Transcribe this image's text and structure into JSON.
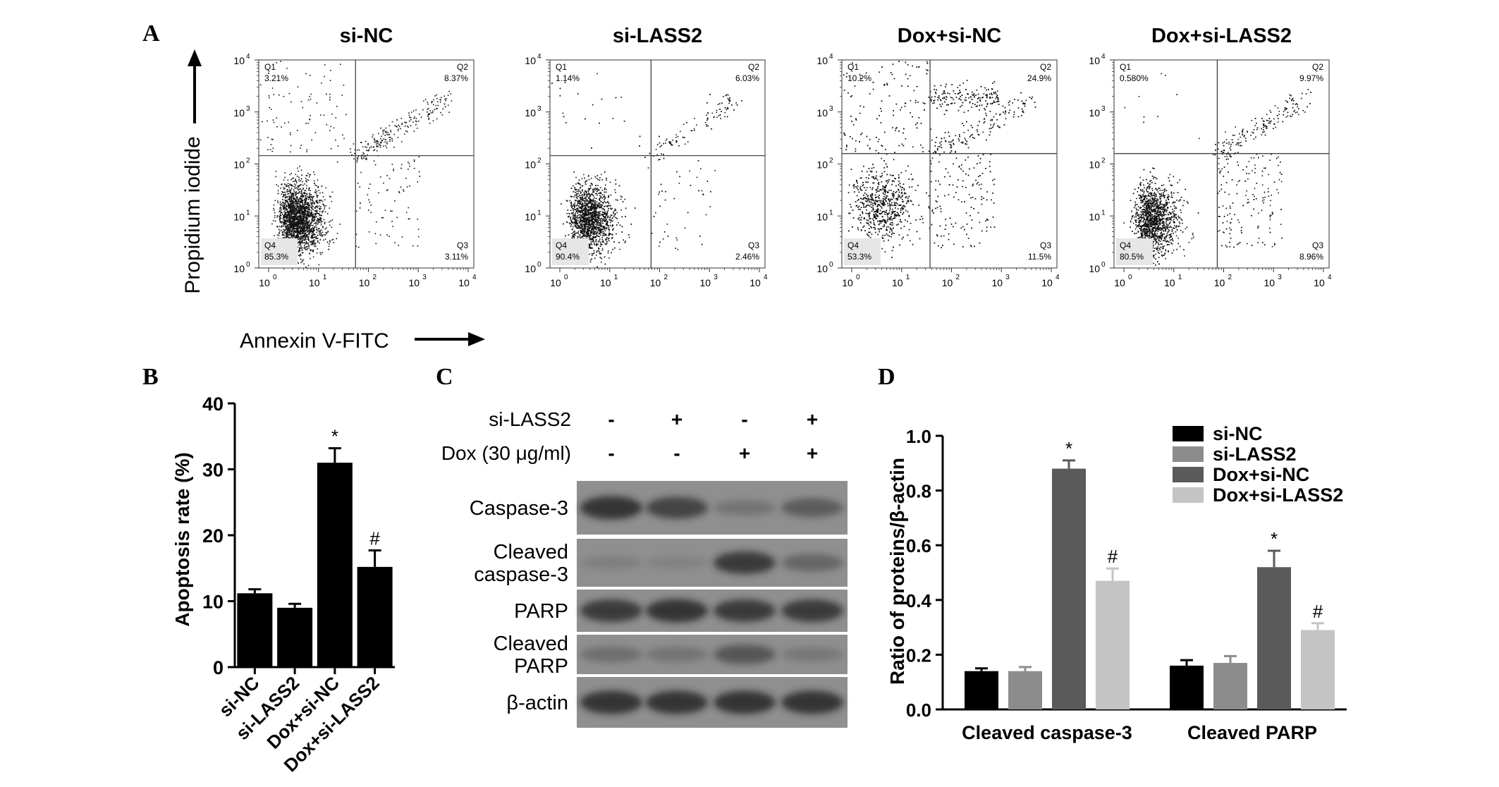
{
  "figure": {
    "panels": {
      "A": {
        "letter": "A",
        "y_axis_label": "Propidium iodide",
        "x_axis_label": "Annexin V-FITC",
        "tick_labels": [
          "10",
          "10",
          "10",
          "10",
          "10"
        ],
        "tick_exponents": [
          "0",
          "1",
          "2",
          "3",
          "4"
        ],
        "plots": [
          {
            "title": "si-NC",
            "quadrants": {
              "Q1": "3.21%",
              "Q2": "8.37%",
              "Q3": "3.11%",
              "Q4": "85.3%"
            }
          },
          {
            "title": "si-LASS2",
            "quadrants": {
              "Q1": "1.14%",
              "Q2": "6.03%",
              "Q3": "2.46%",
              "Q4": "90.4%"
            }
          },
          {
            "title": "Dox+si-NC",
            "quadrants": {
              "Q1": "10.2%",
              "Q2": "24.9%",
              "Q3": "11.5%",
              "Q4": "53.3%"
            }
          },
          {
            "title": "Dox+si-LASS2",
            "quadrants": {
              "Q1": "0.580%",
              "Q2": "9.97%",
              "Q3": "8.96%",
              "Q4": "80.5%"
            }
          }
        ],
        "quadrant_names": [
          "Q1",
          "Q2",
          "Q3",
          "Q4"
        ]
      },
      "B": {
        "letter": "B"
      },
      "C": {
        "letter": "C",
        "treatments": [
          {
            "label": "si-LASS2",
            "signs": [
              "-",
              "+",
              "-",
              "+"
            ]
          },
          {
            "label": "Dox (30 μg/ml)",
            "signs": [
              "-",
              "-",
              "+",
              "+"
            ]
          }
        ],
        "bands": [
          {
            "label": "Caspase-3",
            "intensity": [
              0.85,
              0.75,
              0.3,
              0.55
            ]
          },
          {
            "label": "Cleaved\ncaspase-3",
            "intensity": [
              0.15,
              0.1,
              0.8,
              0.45
            ]
          },
          {
            "label": "PARP",
            "intensity": [
              0.8,
              0.85,
              0.8,
              0.8
            ]
          },
          {
            "label": "Cleaved\nPARP",
            "intensity": [
              0.35,
              0.3,
              0.6,
              0.25
            ]
          },
          {
            "label": "β-actin",
            "intensity": [
              0.85,
              0.85,
              0.85,
              0.85
            ]
          }
        ]
      },
      "D": {
        "letter": "D"
      }
    }
  },
  "chart_data": [
    {
      "type": "bar",
      "title": "",
      "xlabel": "",
      "ylabel": "Apoptosis rate (%)",
      "categories": [
        "si-NC",
        "si-LASS2",
        "Dox+si-NC",
        "Dox+si-LASS2"
      ],
      "values": [
        11.2,
        9.0,
        31.0,
        15.2
      ],
      "errors": [
        0.6,
        0.6,
        2.2,
        2.5
      ],
      "annotations": [
        "",
        "",
        "*",
        "#"
      ],
      "ylim": [
        0,
        40
      ],
      "yticks": [
        "0",
        "10",
        "20",
        "30",
        "40"
      ],
      "bar_color": "#000000"
    },
    {
      "type": "bar",
      "title": "",
      "xlabel": "",
      "ylabel": "Ratio of proteins/β-actin",
      "categories": [
        "Cleaved caspase-3",
        "Cleaved PARP"
      ],
      "series": [
        {
          "name": "si-NC",
          "color": "#000000",
          "values": [
            0.14,
            0.16
          ],
          "errors": [
            0.01,
            0.02
          ],
          "annotations": [
            "",
            ""
          ]
        },
        {
          "name": "si-LASS2",
          "color": "#8c8c8c",
          "values": [
            0.14,
            0.17
          ],
          "errors": [
            0.015,
            0.025
          ],
          "annotations": [
            "",
            ""
          ]
        },
        {
          "name": "Dox+si-NC",
          "color": "#5a5a5a",
          "values": [
            0.88,
            0.52
          ],
          "errors": [
            0.03,
            0.06
          ],
          "annotations": [
            "*",
            "*"
          ]
        },
        {
          "name": "Dox+si-LASS2",
          "color": "#c4c4c4",
          "values": [
            0.47,
            0.29
          ],
          "errors": [
            0.045,
            0.025
          ],
          "annotations": [
            "#",
            "#"
          ]
        }
      ],
      "ylim": [
        0,
        1.0
      ],
      "yticks": [
        "0.0",
        "0.2",
        "0.4",
        "0.6",
        "0.8",
        "1.0"
      ],
      "legend": "top-right"
    }
  ]
}
